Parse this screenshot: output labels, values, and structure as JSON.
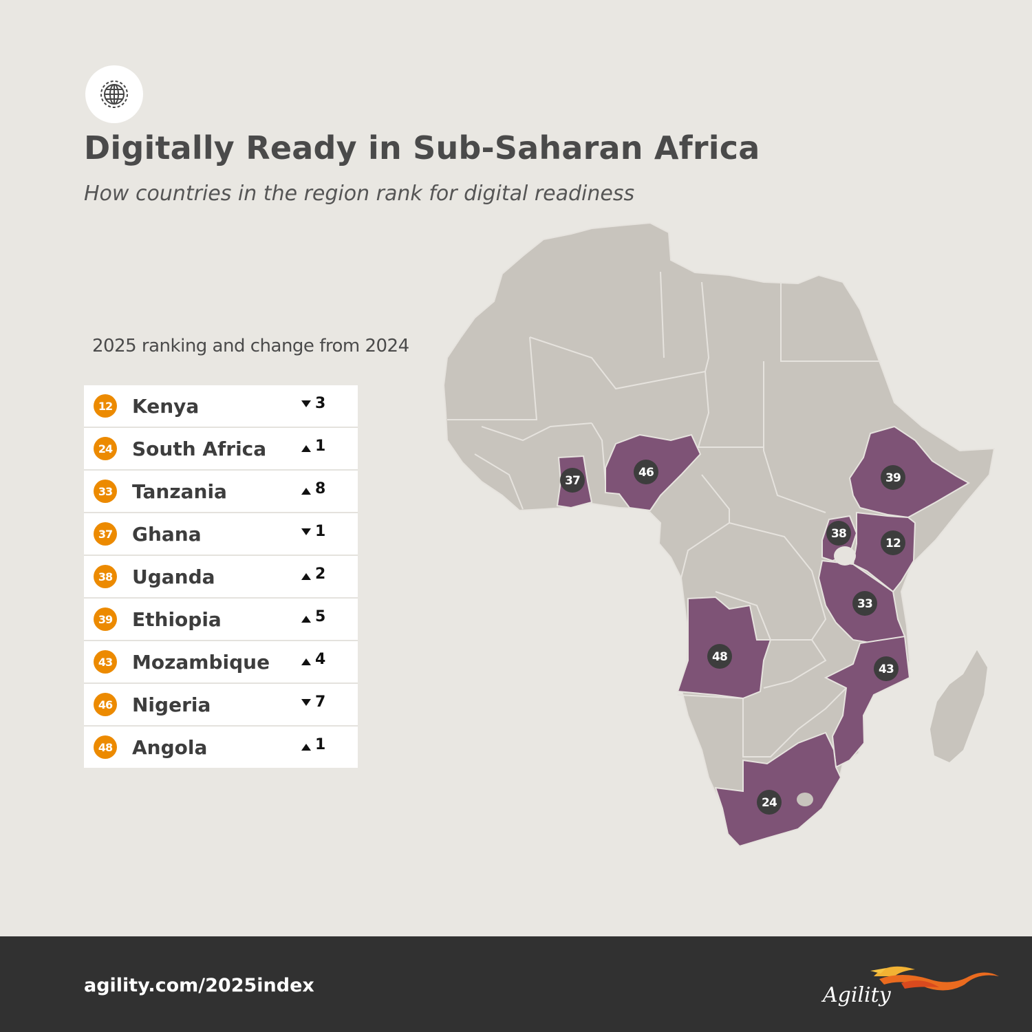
{
  "header": {
    "icon": "globe-gear-icon",
    "title": "Digitally Ready in Sub-Saharan Africa",
    "subtitle": "How countries in the region rank for digital readiness"
  },
  "legend_caption": "2025 ranking and change from 2024",
  "rankings": [
    {
      "rank": "12",
      "country": "Kenya",
      "direction": "down",
      "change": "3"
    },
    {
      "rank": "24",
      "country": "South Africa",
      "direction": "up",
      "change": "1"
    },
    {
      "rank": "33",
      "country": "Tanzania",
      "direction": "up",
      "change": "8"
    },
    {
      "rank": "37",
      "country": "Ghana",
      "direction": "down",
      "change": "1"
    },
    {
      "rank": "38",
      "country": "Uganda",
      "direction": "up",
      "change": "2"
    },
    {
      "rank": "39",
      "country": "Ethiopia",
      "direction": "up",
      "change": "5"
    },
    {
      "rank": "43",
      "country": "Mozambique",
      "direction": "up",
      "change": "4"
    },
    {
      "rank": "46",
      "country": "Nigeria",
      "direction": "down",
      "change": "7"
    },
    {
      "rank": "48",
      "country": "Angola",
      "direction": "up",
      "change": "1"
    }
  ],
  "map_markers": [
    "12",
    "24",
    "33",
    "37",
    "38",
    "39",
    "43",
    "46",
    "48"
  ],
  "colors": {
    "background": "#e9e7e2",
    "land": "#c8c4bd",
    "highlight": "#7e5376",
    "rank_badge": "#ec8a00",
    "marker": "#3d3d3d",
    "footer": "#313131"
  },
  "footer": {
    "url": "agility.com/2025index",
    "brand": "Agility",
    "logo_icon": "phoenix-logo-icon"
  }
}
